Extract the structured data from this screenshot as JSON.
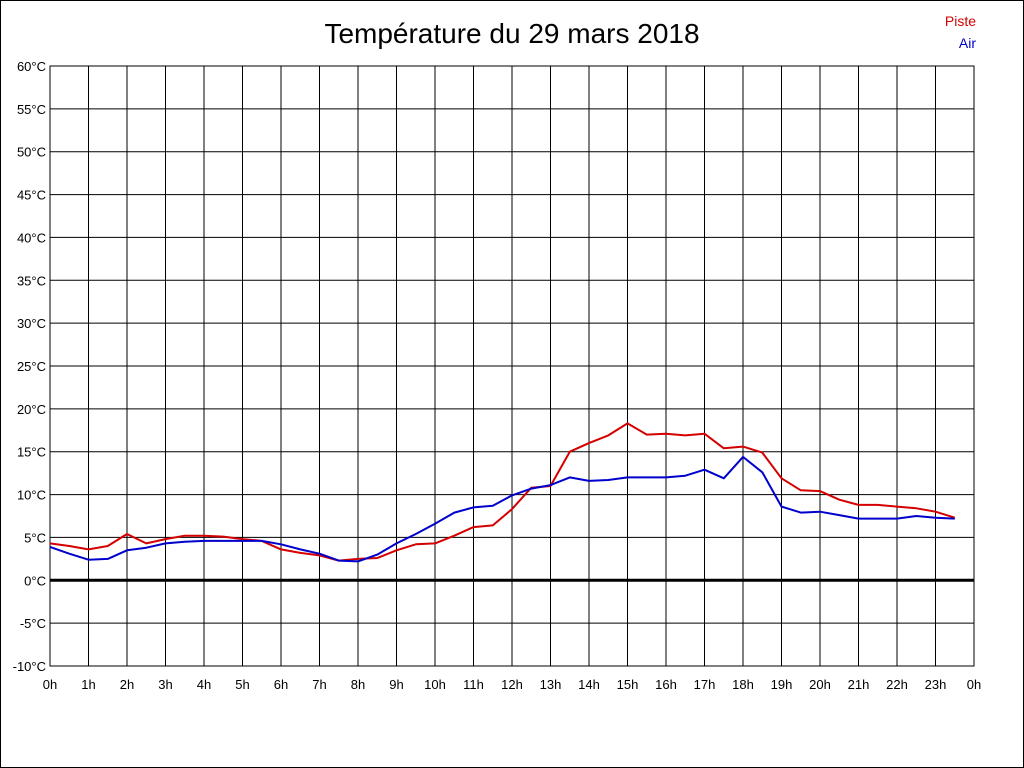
{
  "chart_data": {
    "type": "line",
    "title": "Température du 29 mars 2018",
    "x_ticks": [
      "0h",
      "1h",
      "2h",
      "3h",
      "4h",
      "5h",
      "6h",
      "7h",
      "8h",
      "9h",
      "10h",
      "11h",
      "12h",
      "13h",
      "14h",
      "15h",
      "16h",
      "17h",
      "18h",
      "19h",
      "20h",
      "21h",
      "22h",
      "23h",
      "0h"
    ],
    "y_ticks": [
      "-10°C",
      "-5°C",
      "0°C",
      "5°C",
      "10°C",
      "15°C",
      "20°C",
      "25°C",
      "30°C",
      "35°C",
      "40°C",
      "45°C",
      "50°C",
      "55°C",
      "60°C"
    ],
    "xlim": [
      0,
      24
    ],
    "ylim": [
      -10,
      60
    ],
    "grid": true,
    "legend_position": "top-right",
    "x": [
      0,
      0.5,
      1,
      1.5,
      2,
      2.5,
      3,
      3.5,
      4,
      4.5,
      5,
      5.5,
      6,
      6.5,
      7,
      7.5,
      8,
      8.5,
      9,
      9.5,
      10,
      10.5,
      11,
      11.5,
      12,
      12.5,
      13,
      13.5,
      14,
      14.5,
      15,
      15.5,
      16,
      16.5,
      17,
      17.5,
      18,
      18.5,
      19,
      19.5,
      20,
      20.5,
      21,
      21.5,
      22,
      22.5,
      23,
      23.5
    ],
    "series": [
      {
        "name": "Piste",
        "color": "#d40000",
        "values": [
          4.3,
          4.0,
          3.6,
          4.0,
          5.4,
          4.3,
          4.8,
          5.2,
          5.2,
          5.1,
          4.8,
          4.6,
          3.6,
          3.2,
          2.9,
          2.3,
          2.5,
          2.6,
          3.5,
          4.2,
          4.3,
          5.2,
          6.2,
          6.4,
          8.3,
          10.8,
          11.0,
          15.0,
          16.0,
          16.9,
          18.3,
          17.0,
          17.1,
          16.9,
          17.1,
          15.4,
          15.6,
          14.9,
          11.9,
          10.5,
          10.4,
          9.4,
          8.8,
          8.8,
          8.6,
          8.4,
          8.0,
          7.3
        ]
      },
      {
        "name": "Air",
        "color": "#0000cc",
        "values": [
          3.9,
          3.1,
          2.4,
          2.5,
          3.5,
          3.8,
          4.3,
          4.5,
          4.6,
          4.6,
          4.6,
          4.6,
          4.2,
          3.6,
          3.1,
          2.3,
          2.2,
          3.0,
          4.3,
          5.4,
          6.6,
          7.9,
          8.5,
          8.7,
          9.9,
          10.7,
          11.1,
          12.0,
          11.6,
          11.7,
          12.0,
          12.0,
          12.0,
          12.2,
          12.9,
          11.9,
          14.4,
          12.6,
          8.6,
          7.9,
          8.0,
          7.6,
          7.2,
          7.2,
          7.2,
          7.5,
          7.3,
          7.2
        ]
      }
    ]
  }
}
